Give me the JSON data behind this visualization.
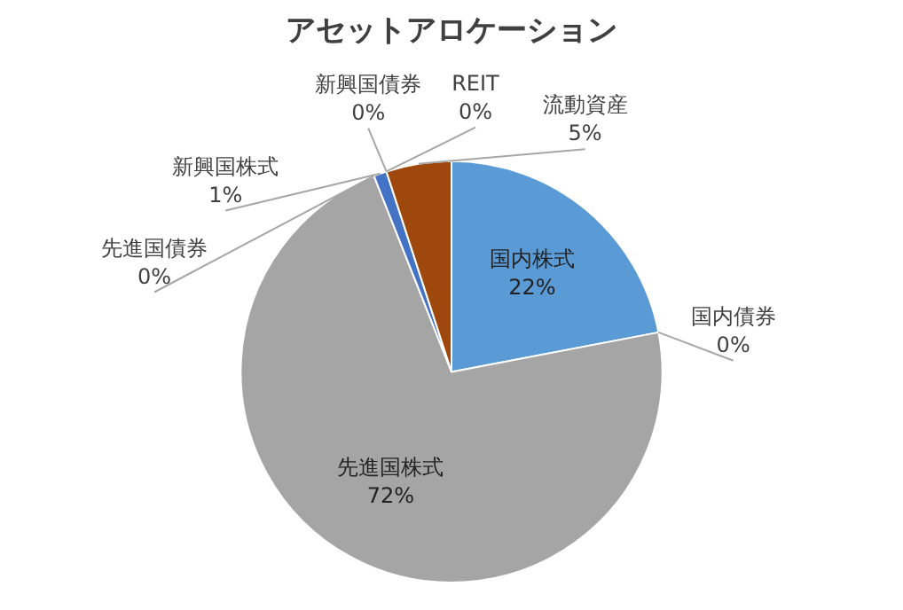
{
  "chart_data": {
    "type": "pie",
    "title": "アセットアロケーション",
    "categories": [
      "国内株式",
      "国内債券",
      "先進国株式",
      "先進国債券",
      "新興国株式",
      "新興国債券",
      "REIT",
      "流動資産"
    ],
    "values": [
      22,
      0,
      72,
      0,
      1,
      0,
      0,
      5
    ],
    "value_labels": [
      "22%",
      "0%",
      "72%",
      "0%",
      "1%",
      "0%",
      "0%",
      "5%"
    ],
    "colors": [
      "#5b9bd5",
      "#ed7d31",
      "#a5a5a5",
      "#ffc000",
      "#4472c4",
      "#70ad47",
      "#264478",
      "#9e480e"
    ],
    "legend": false
  }
}
